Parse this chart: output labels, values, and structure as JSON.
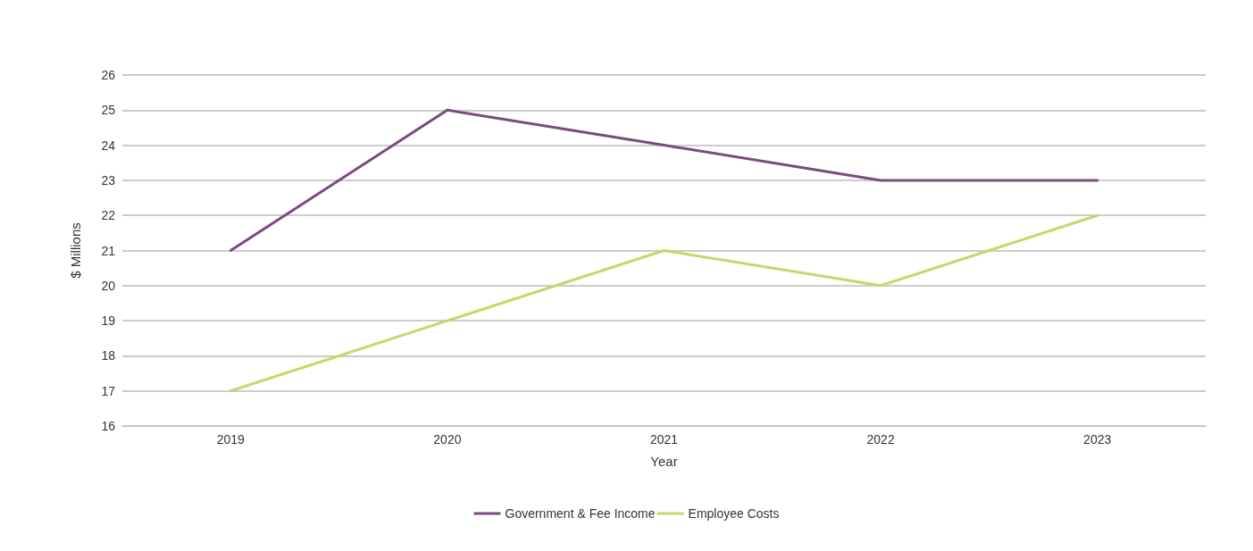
{
  "chart_data": {
    "type": "line",
    "xlabel": "Year",
    "ylabel": "$ Millions",
    "categories": [
      "2019",
      "2020",
      "2021",
      "2022",
      "2023"
    ],
    "series": [
      {
        "name": "Government & Fee Income",
        "color": "#7b4a80",
        "values": [
          21,
          25,
          24,
          23,
          23
        ]
      },
      {
        "name": "Employee Costs",
        "color": "#c4d86a",
        "values": [
          17,
          19,
          21,
          20,
          22
        ]
      }
    ],
    "ylim": [
      16,
      26
    ],
    "yticks": [
      16,
      17,
      18,
      19,
      20,
      21,
      22,
      23,
      24,
      25,
      26
    ],
    "grid": "y",
    "legend": "bottom",
    "marker": "none",
    "line_style": "solid"
  }
}
